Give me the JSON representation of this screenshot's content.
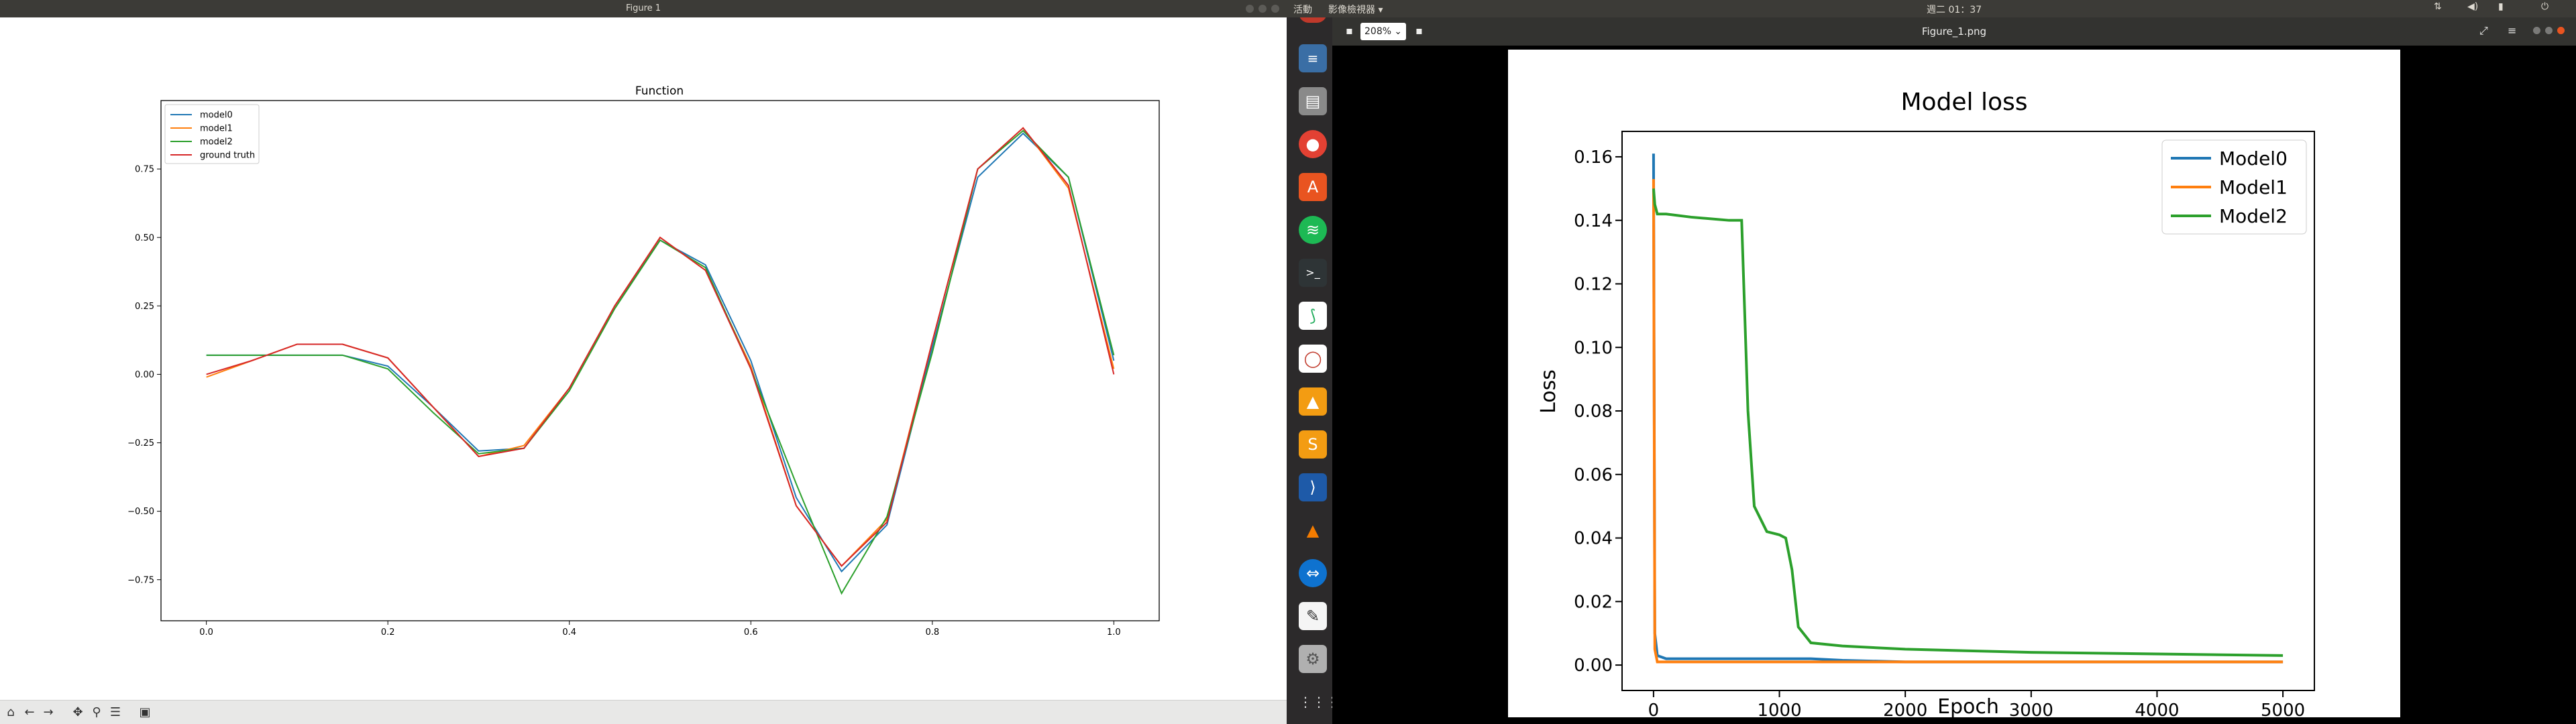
{
  "left_window": {
    "title": "Figure 1",
    "plot": {
      "title": "Function",
      "legend": [
        "model0",
        "model1",
        "model2",
        "ground truth"
      ],
      "x_ticks": [
        "0.0",
        "0.2",
        "0.4",
        "0.6",
        "0.8",
        "1.0"
      ],
      "y_ticks": [
        "0.75",
        "0.50",
        "0.25",
        "0.00",
        "−0.25",
        "−0.50",
        "−0.75"
      ]
    },
    "toolbar": {
      "home": "home-icon",
      "back": "back-icon",
      "forward": "forward-icon",
      "pan": "pan-icon",
      "zoom": "zoom-icon",
      "configure": "configure-icon",
      "save": "save-icon"
    }
  },
  "top_panel": {
    "activities": "活動",
    "app_menu": "影像檢視器 ▾",
    "clock": "週二 01：37"
  },
  "viewer": {
    "zoom_value": "208%",
    "filename": "Figure_1.png",
    "chart": {
      "title": "Model loss",
      "xlabel": "Epoch",
      "ylabel": "Loss",
      "legend": [
        "Model0",
        "Model1",
        "Model2"
      ],
      "x_ticks": [
        "0",
        "1000",
        "2000",
        "3000",
        "4000",
        "5000"
      ],
      "y_ticks": [
        "0.16",
        "0.14",
        "0.12",
        "0.10",
        "0.08",
        "0.06",
        "0.04",
        "0.02",
        "0.00"
      ]
    }
  },
  "chart_data": [
    {
      "type": "line",
      "title": "Function",
      "xlabel": "",
      "ylabel": "",
      "xlim": [
        -0.05,
        1.05
      ],
      "ylim": [
        -0.9,
        1.0
      ],
      "grid": false,
      "legend": "top-left",
      "x": [
        0.0,
        0.05,
        0.1,
        0.15,
        0.2,
        0.25,
        0.3,
        0.35,
        0.4,
        0.45,
        0.5,
        0.55,
        0.6,
        0.65,
        0.7,
        0.75,
        0.8,
        0.85,
        0.9,
        0.95,
        1.0
      ],
      "series": [
        {
          "name": "model0",
          "color": "#1f77b4",
          "values": [
            0.07,
            0.07,
            0.07,
            0.07,
            0.03,
            -0.12,
            -0.28,
            -0.27,
            -0.05,
            0.25,
            0.49,
            0.4,
            0.05,
            -0.45,
            -0.72,
            -0.55,
            0.1,
            0.72,
            0.88,
            0.72,
            0.05
          ]
        },
        {
          "name": "model1",
          "color": "#ff7f0e",
          "values": [
            -0.01,
            0.05,
            0.11,
            0.11,
            0.06,
            -0.12,
            -0.3,
            -0.26,
            -0.05,
            0.25,
            0.5,
            0.38,
            0.03,
            -0.48,
            -0.7,
            -0.53,
            0.12,
            0.75,
            0.9,
            0.68,
            0.02
          ]
        },
        {
          "name": "model2",
          "color": "#2ca02c",
          "values": [
            0.07,
            0.07,
            0.07,
            0.07,
            0.02,
            -0.14,
            -0.29,
            -0.27,
            -0.06,
            0.24,
            0.49,
            0.39,
            0.02,
            -0.4,
            -0.8,
            -0.52,
            0.08,
            0.75,
            0.89,
            0.72,
            0.07
          ]
        },
        {
          "name": "ground truth",
          "color": "#d62728",
          "values": [
            0.0,
            0.05,
            0.11,
            0.11,
            0.06,
            -0.12,
            -0.3,
            -0.27,
            -0.05,
            0.25,
            0.5,
            0.38,
            0.02,
            -0.48,
            -0.7,
            -0.54,
            0.12,
            0.75,
            0.9,
            0.69,
            0.0
          ]
        }
      ]
    },
    {
      "type": "line",
      "title": "Model loss",
      "xlabel": "Epoch",
      "ylabel": "Loss",
      "xlim": [
        -250,
        5250
      ],
      "ylim": [
        -0.008,
        0.168
      ],
      "grid": false,
      "legend": "top-right",
      "x": [
        0,
        10,
        30,
        100,
        300,
        600,
        700,
        750,
        800,
        900,
        1000,
        1050,
        1100,
        1150,
        1250,
        1500,
        2000,
        3000,
        4000,
        5000
      ],
      "series": [
        {
          "name": "Model0",
          "color": "#1f77b4",
          "values": [
            0.161,
            0.01,
            0.003,
            0.002,
            0.002,
            0.002,
            0.002,
            0.002,
            0.002,
            0.002,
            0.002,
            0.002,
            0.002,
            0.002,
            0.002,
            0.0015,
            0.001,
            0.001,
            0.001,
            0.001
          ]
        },
        {
          "name": "Model1",
          "color": "#ff7f0e",
          "values": [
            0.153,
            0.005,
            0.001,
            0.001,
            0.001,
            0.001,
            0.001,
            0.001,
            0.001,
            0.001,
            0.001,
            0.001,
            0.001,
            0.001,
            0.001,
            0.001,
            0.001,
            0.001,
            0.001,
            0.001
          ]
        },
        {
          "name": "Model2",
          "color": "#2ca02c",
          "values": [
            0.15,
            0.145,
            0.142,
            0.142,
            0.141,
            0.14,
            0.14,
            0.08,
            0.05,
            0.042,
            0.041,
            0.04,
            0.03,
            0.012,
            0.007,
            0.006,
            0.005,
            0.004,
            0.0035,
            0.003
          ]
        }
      ]
    }
  ]
}
